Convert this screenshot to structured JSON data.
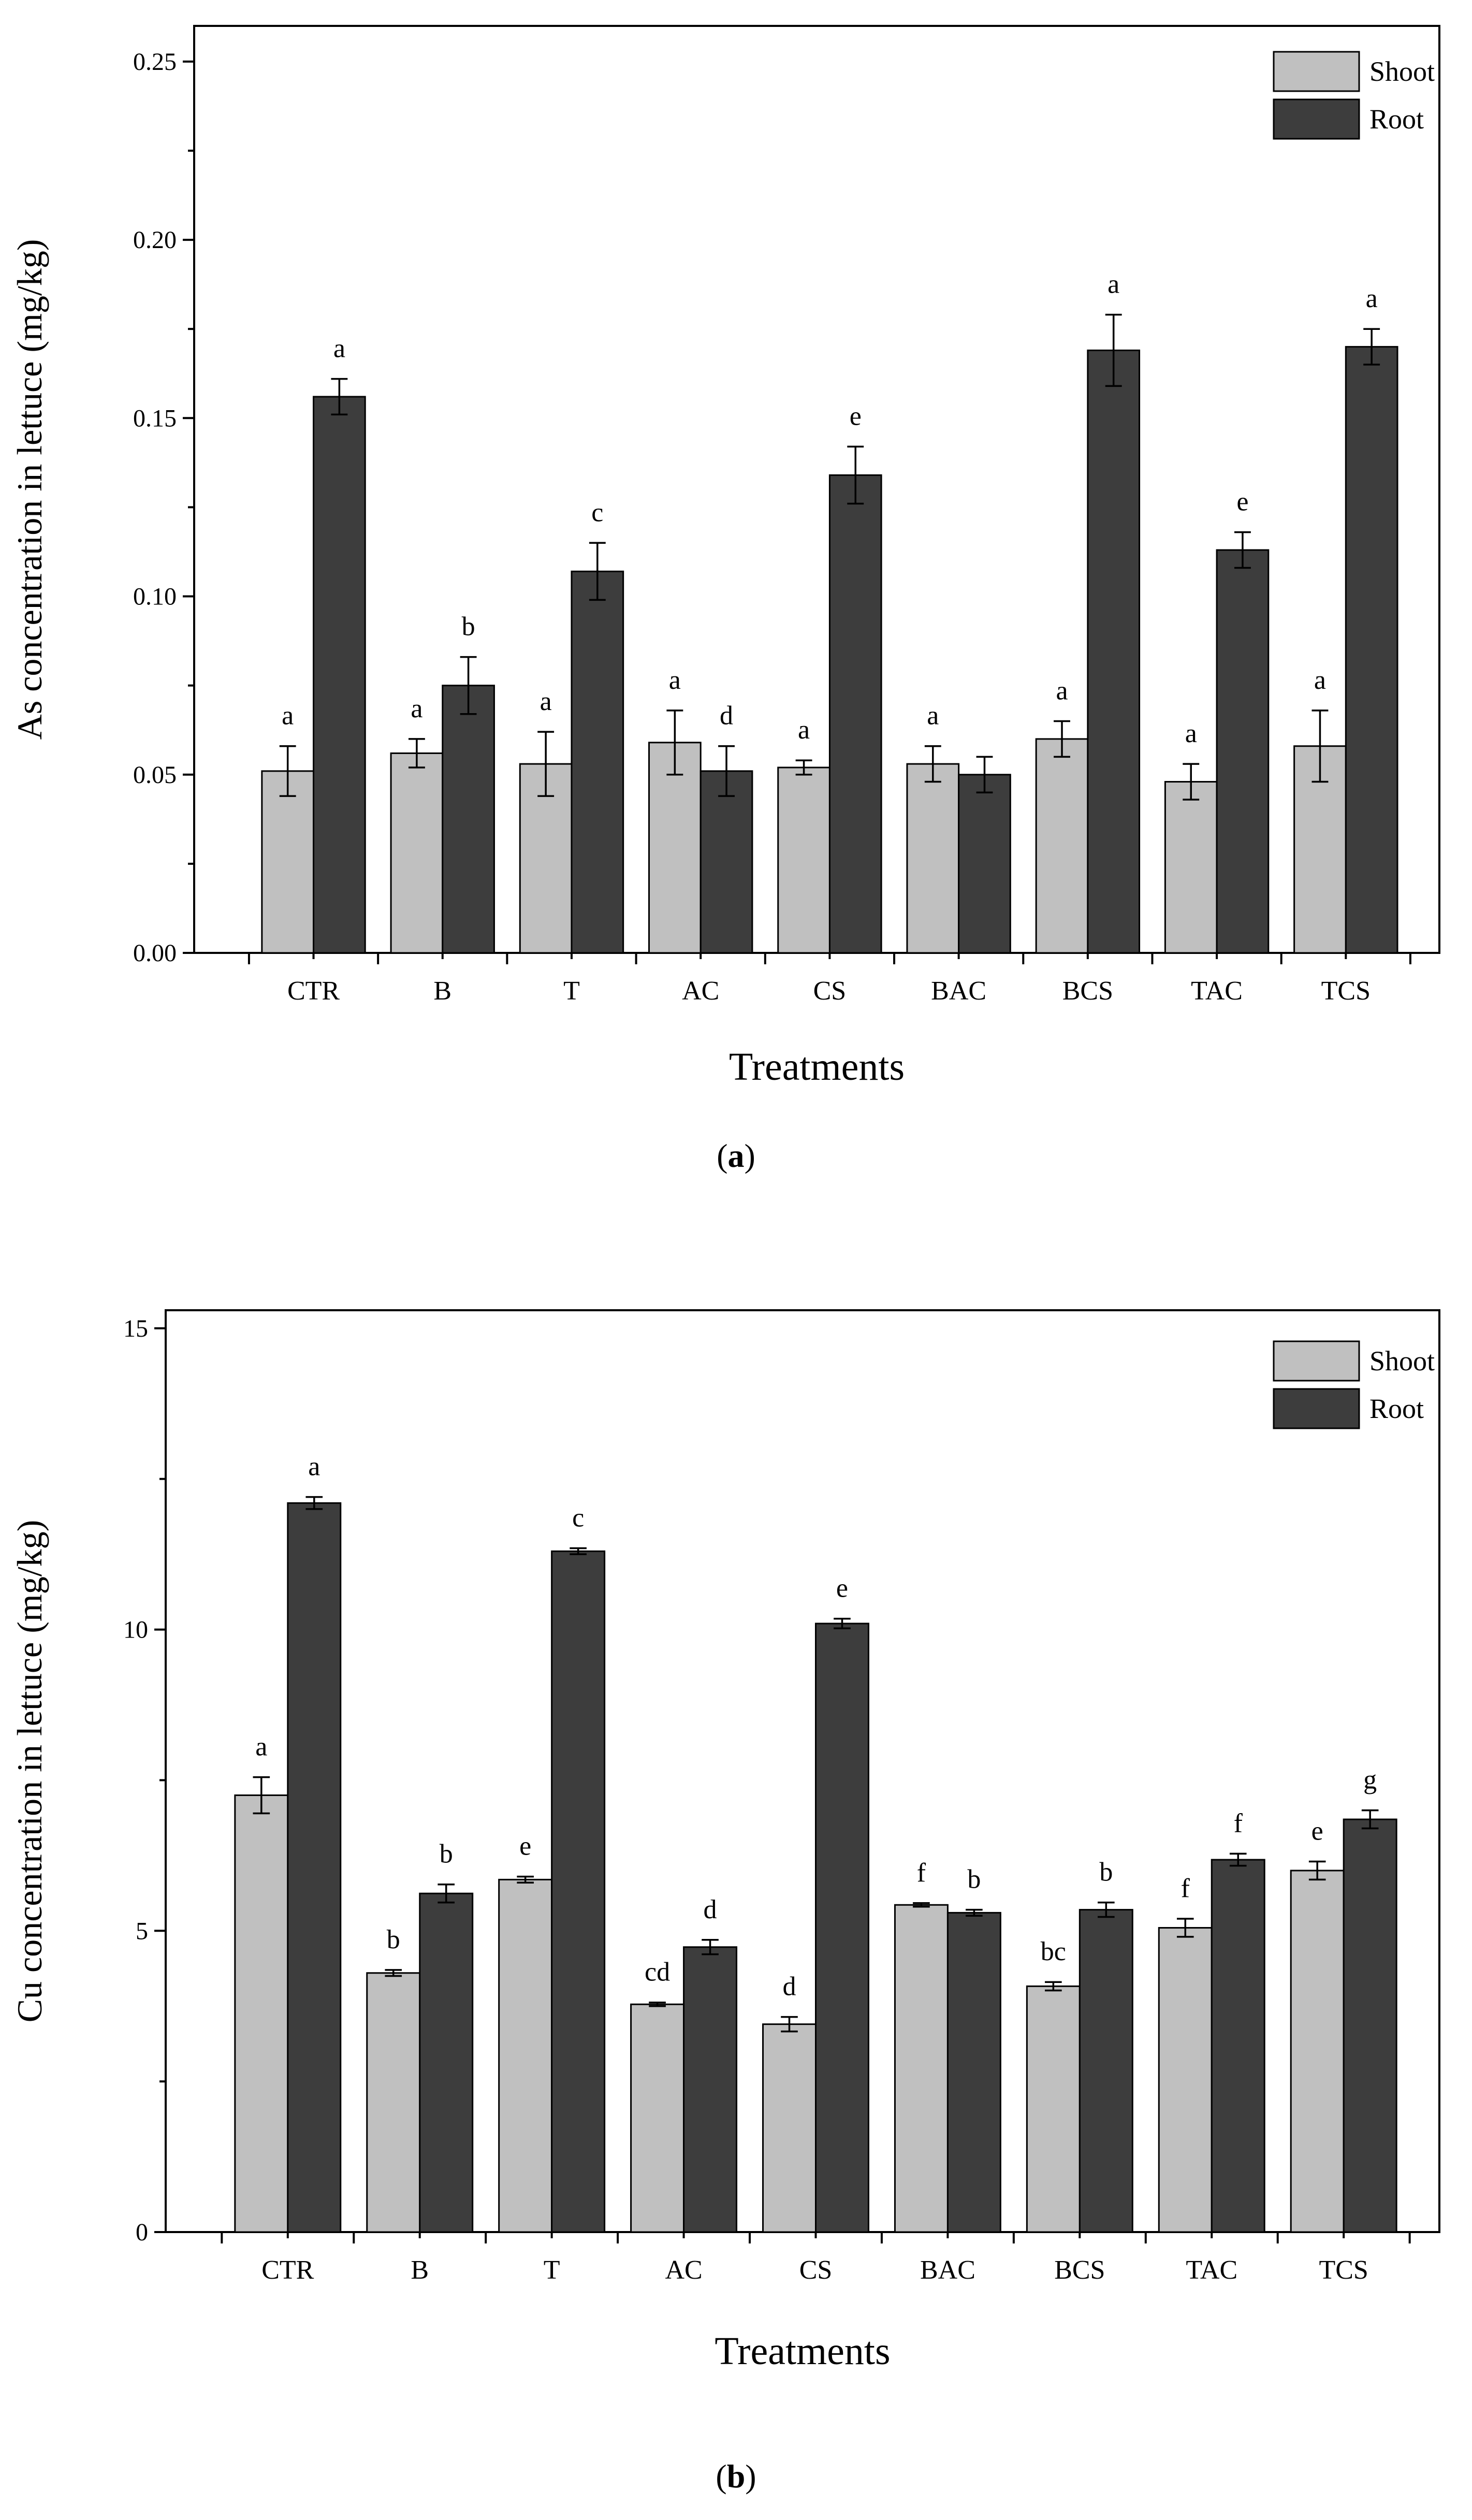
{
  "colors": {
    "shoot": "#c0c0c0",
    "root": "#3d3d3d",
    "axis": "#000000"
  },
  "chart_data": [
    {
      "type": "bar",
      "panel_label": "a",
      "xlabel": "Treatments",
      "ylabel": "As concentration in lettuce (mg/kg)",
      "ylim": [
        0,
        0.26
      ],
      "yticks": [
        "0.00",
        "0.05",
        "0.10",
        "0.15",
        "0.20",
        "0.25"
      ],
      "ytick_values": [
        0,
        0.05,
        0.1,
        0.15,
        0.2,
        0.25
      ],
      "ytick_minor_step": 0.025,
      "categories": [
        "CTR",
        "B",
        "T",
        "AC",
        "CS",
        "BAC",
        "BCS",
        "TAC",
        "TCS"
      ],
      "legend": {
        "position": "top-right",
        "entries": [
          "Shoot",
          "Root"
        ]
      },
      "series": [
        {
          "name": "Shoot",
          "values": [
            0.051,
            0.056,
            0.053,
            0.059,
            0.052,
            0.053,
            0.06,
            0.048,
            0.058
          ],
          "errors": [
            0.007,
            0.004,
            0.009,
            0.009,
            0.002,
            0.005,
            0.005,
            0.005,
            0.01
          ],
          "letters": [
            "a",
            "a",
            "a",
            "a",
            "a",
            "a",
            "a",
            "a",
            "a"
          ]
        },
        {
          "name": "Root",
          "values": [
            0.156,
            0.075,
            0.107,
            0.051,
            0.134,
            0.05,
            0.169,
            0.113,
            0.17
          ],
          "errors": [
            0.005,
            0.008,
            0.008,
            0.007,
            0.008,
            0.005,
            0.01,
            0.005,
            0.005
          ],
          "letters": [
            "a",
            "b",
            "c",
            "d",
            "e",
            "",
            "a",
            "e",
            "a"
          ]
        }
      ]
    },
    {
      "type": "bar",
      "panel_label": "b",
      "xlabel": "Treatments",
      "ylabel": "Cu concentration in lettuce (mg/kg)",
      "ylim": [
        0,
        15.3
      ],
      "yticks": [
        "0",
        "5",
        "10",
        "15"
      ],
      "ytick_values": [
        0,
        5,
        10,
        15
      ],
      "ytick_minor_step": 2.5,
      "categories": [
        "CTR",
        "B",
        "T",
        "AC",
        "CS",
        "BAC",
        "BCS",
        "TAC",
        "TCS"
      ],
      "legend": {
        "position": "top-right",
        "entries": [
          "Shoot",
          "Root"
        ]
      },
      "series": [
        {
          "name": "Shoot",
          "values": [
            7.25,
            4.3,
            5.85,
            3.78,
            3.45,
            5.43,
            4.08,
            5.05,
            6.0
          ],
          "errors": [
            0.3,
            0.05,
            0.05,
            0.03,
            0.12,
            0.03,
            0.07,
            0.15,
            0.15
          ],
          "letters": [
            "a",
            "b",
            "e",
            "cd",
            "d",
            "f",
            "bc",
            "f",
            "e"
          ]
        },
        {
          "name": "Root",
          "values": [
            12.1,
            5.62,
            11.3,
            4.73,
            10.1,
            5.3,
            5.35,
            6.18,
            6.85
          ],
          "errors": [
            0.1,
            0.15,
            0.05,
            0.12,
            0.08,
            0.05,
            0.12,
            0.1,
            0.15
          ],
          "letters": [
            "a",
            "b",
            "c",
            "d",
            "e",
            "b",
            "b",
            "f",
            "g"
          ]
        }
      ]
    }
  ]
}
